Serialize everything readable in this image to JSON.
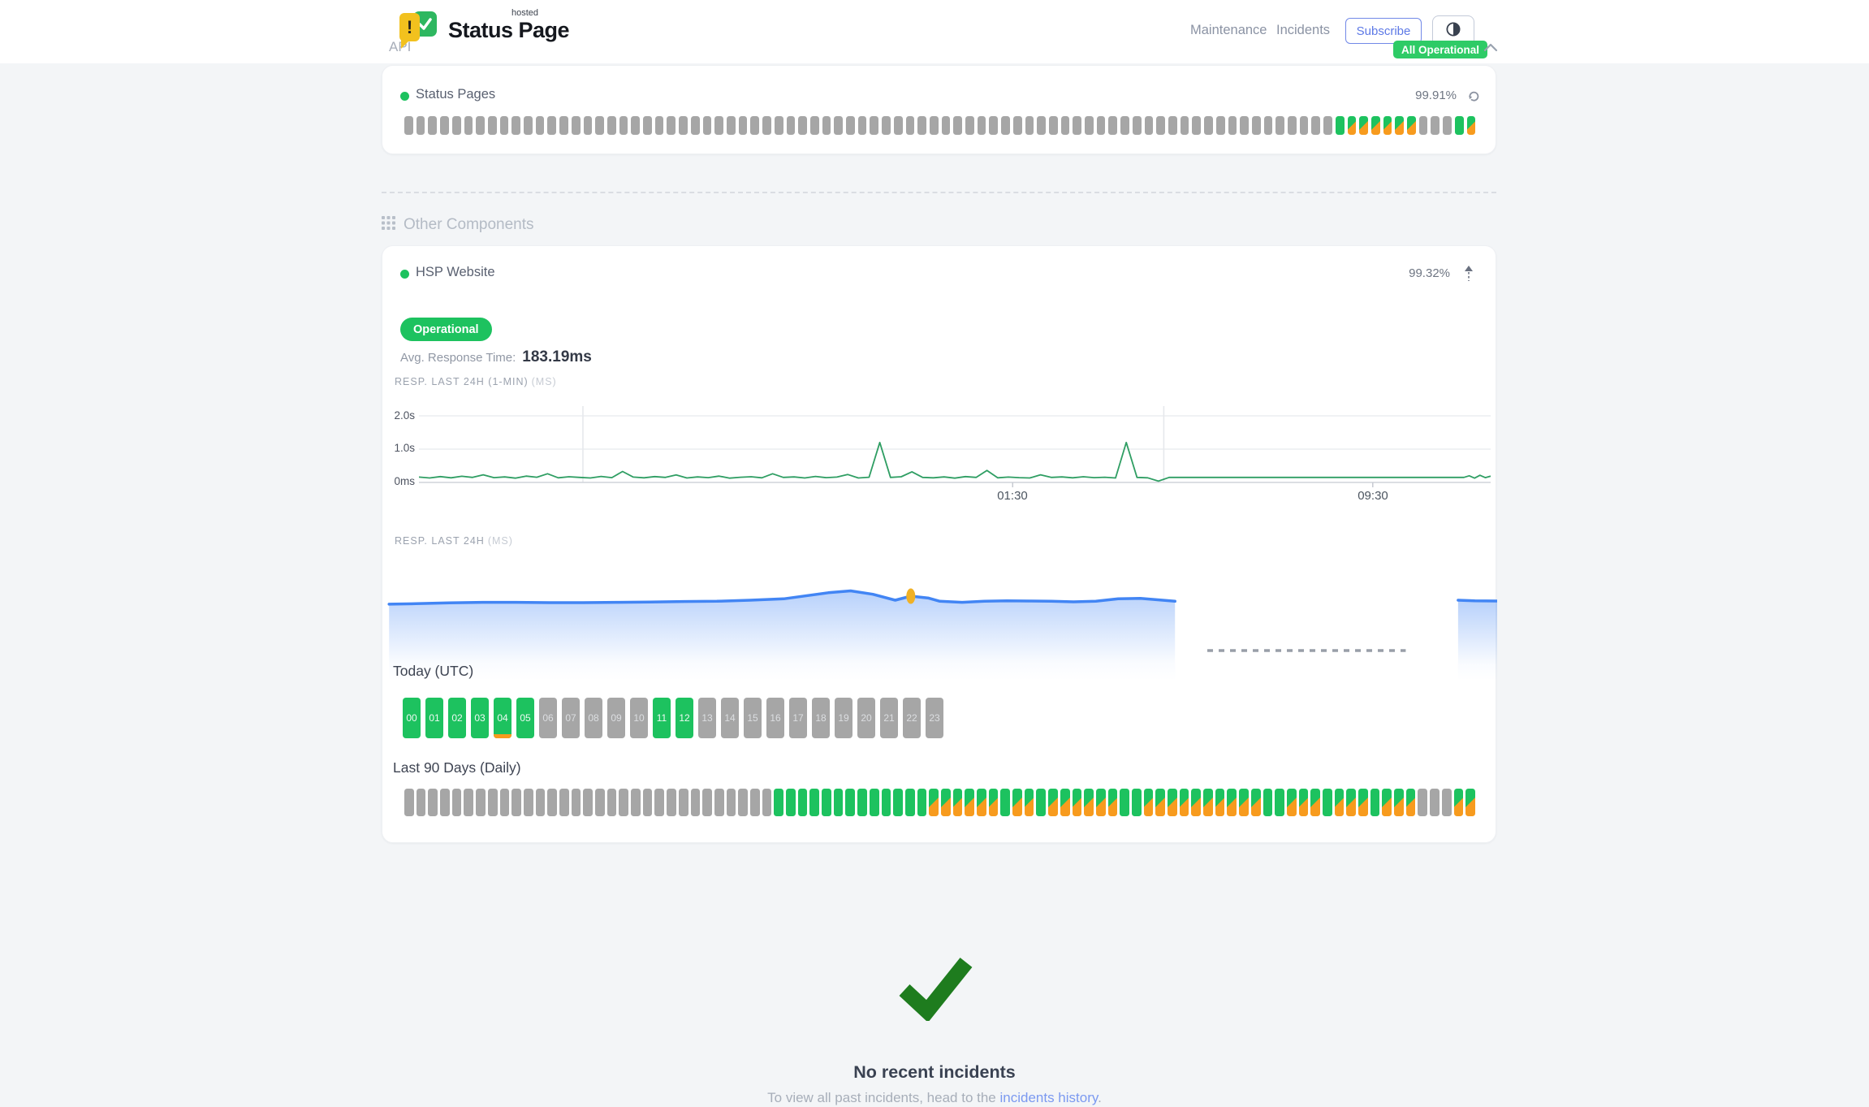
{
  "header": {
    "brand": {
      "title": "Status Page",
      "superscript": "hosted"
    },
    "nav": [
      {
        "label": "Maintenance"
      },
      {
        "label": "Incidents"
      }
    ],
    "subscribe_label": "Subscribe",
    "status_badge": "All Operational"
  },
  "sections": {
    "api": {
      "title": "API",
      "component": {
        "name": "Status Pages",
        "uptime": "99.91%"
      }
    },
    "other": {
      "title": "Other Components",
      "component": {
        "name": "HSP Website",
        "uptime": "99.32%",
        "status": "Operational",
        "avg_label": "Avg. Response Time:",
        "avg_value": "183.19ms"
      }
    }
  },
  "uptime_bars": {
    "status_pages": "ggggggggggggggggggggggggggggggggggggggggggggggggggggggggggggggggggggggggggggggGOOOOOOgggGO",
    "last_90_days": "gggggggggggggggggggggggggggggggGGGGGGGGGGGGGOOOOOOGOOGOOOOOOGGOOOOOOOOOOGGOOOGOOOGOOOgggOO"
  },
  "today": {
    "title": "Today (UTC)",
    "hours": [
      {
        "label": "00",
        "status": "up"
      },
      {
        "label": "01",
        "status": "up"
      },
      {
        "label": "02",
        "status": "up"
      },
      {
        "label": "03",
        "status": "up"
      },
      {
        "label": "04",
        "status": "up-degraded"
      },
      {
        "label": "05",
        "status": "up"
      },
      {
        "label": "06",
        "status": "none"
      },
      {
        "label": "07",
        "status": "none"
      },
      {
        "label": "08",
        "status": "none"
      },
      {
        "label": "09",
        "status": "none"
      },
      {
        "label": "10",
        "status": "none"
      },
      {
        "label": "11",
        "status": "up"
      },
      {
        "label": "12",
        "status": "up"
      },
      {
        "label": "13",
        "status": "none"
      },
      {
        "label": "14",
        "status": "none"
      },
      {
        "label": "15",
        "status": "none"
      },
      {
        "label": "16",
        "status": "none"
      },
      {
        "label": "17",
        "status": "none"
      },
      {
        "label": "18",
        "status": "none"
      },
      {
        "label": "19",
        "status": "none"
      },
      {
        "label": "20",
        "status": "none"
      },
      {
        "label": "21",
        "status": "none"
      },
      {
        "label": "22",
        "status": "none"
      },
      {
        "label": "23",
        "status": "none"
      }
    ]
  },
  "last90": {
    "title": "Last 90 Days (Daily)"
  },
  "incidents": {
    "title": "No recent incidents",
    "subtext_prefix": "To view all past incidents, head to the ",
    "link_label": "incidents history",
    "subtext_suffix": "."
  },
  "colors": {
    "green": "#1dc25f",
    "orange": "#f79b1e",
    "gray_bar": "#a6a6a6",
    "badge_green": "#2ecb66",
    "line_green": "#2f9e63",
    "line_blue": "#4285f4",
    "marker_yellow": "#f0b126",
    "link_blue": "#7b99f0",
    "check_green": "#1e7c1e"
  },
  "chart_data": [
    {
      "id": "resp_24h_1min",
      "type": "line",
      "title": "RESP. LAST 24H (1-MIN)",
      "unit_label": "(MS)",
      "y_tick_labels": [
        "0ms",
        "1.0s",
        "2.0s"
      ],
      "x_tick_labels": [
        "01:30",
        "09:30"
      ],
      "x_tick_pos": [
        0.554,
        0.89
      ],
      "v_gridlines": [
        0.153,
        0.695
      ],
      "ylim_ms": [
        0,
        2400
      ],
      "line_color": "#2f9e63",
      "points": [
        [
          0,
          160
        ],
        [
          0.01,
          135
        ],
        [
          0.02,
          175
        ],
        [
          0.03,
          140
        ],
        [
          0.04,
          185
        ],
        [
          0.05,
          150
        ],
        [
          0.06,
          230
        ],
        [
          0.07,
          145
        ],
        [
          0.08,
          165
        ],
        [
          0.09,
          130
        ],
        [
          0.1,
          190
        ],
        [
          0.11,
          155
        ],
        [
          0.12,
          260
        ],
        [
          0.13,
          140
        ],
        [
          0.14,
          170
        ],
        [
          0.15,
          150
        ],
        [
          0.16,
          135
        ],
        [
          0.17,
          180
        ],
        [
          0.18,
          145
        ],
        [
          0.19,
          330
        ],
        [
          0.2,
          160
        ],
        [
          0.21,
          140
        ],
        [
          0.22,
          175
        ],
        [
          0.23,
          150
        ],
        [
          0.24,
          225
        ],
        [
          0.25,
          135
        ],
        [
          0.26,
          165
        ],
        [
          0.27,
          145
        ],
        [
          0.28,
          190
        ],
        [
          0.29,
          130
        ],
        [
          0.3,
          155
        ],
        [
          0.31,
          170
        ],
        [
          0.32,
          140
        ],
        [
          0.33,
          260
        ],
        [
          0.34,
          150
        ],
        [
          0.35,
          165
        ],
        [
          0.36,
          135
        ],
        [
          0.37,
          180
        ],
        [
          0.38,
          145
        ],
        [
          0.39,
          160
        ],
        [
          0.4,
          240
        ],
        [
          0.41,
          135
        ],
        [
          0.42,
          155
        ],
        [
          0.43,
          1200
        ],
        [
          0.44,
          150
        ],
        [
          0.45,
          170
        ],
        [
          0.46,
          320
        ],
        [
          0.47,
          150
        ],
        [
          0.48,
          140
        ],
        [
          0.49,
          165
        ],
        [
          0.5,
          130
        ],
        [
          0.51,
          175
        ],
        [
          0.52,
          150
        ],
        [
          0.53,
          360
        ],
        [
          0.54,
          140
        ],
        [
          0.55,
          160
        ],
        [
          0.56,
          145
        ],
        [
          0.57,
          135
        ],
        [
          0.58,
          230
        ],
        [
          0.59,
          150
        ],
        [
          0.6,
          165
        ],
        [
          0.61,
          140
        ],
        [
          0.62,
          170
        ],
        [
          0.63,
          145
        ],
        [
          0.64,
          155
        ],
        [
          0.65,
          135
        ],
        [
          0.66,
          1200
        ],
        [
          0.67,
          150
        ],
        [
          0.68,
          140
        ],
        [
          0.69,
          40
        ],
        [
          0.7,
          150
        ],
        [
          0.72,
          150
        ],
        [
          0.975,
          150
        ],
        [
          0.98,
          200
        ],
        [
          0.985,
          130
        ],
        [
          0.99,
          215
        ],
        [
          0.995,
          145
        ],
        [
          1,
          190
        ]
      ]
    },
    {
      "id": "resp_24h_avg",
      "type": "area",
      "title": "RESP. LAST 24H",
      "unit_label": "(MS)",
      "avg_ms": 183.19,
      "line_color": "#4285f4",
      "marker": {
        "t": 0.474,
        "ms": 215,
        "color": "#f0b126"
      },
      "gap_dash": {
        "from": 0.74,
        "to": 0.918
      },
      "segments": [
        {
          "points": [
            [
              0.006,
              185
            ],
            [
              0.03,
              187
            ],
            [
              0.06,
              190
            ],
            [
              0.09,
              192
            ],
            [
              0.12,
              192
            ],
            [
              0.15,
              191
            ],
            [
              0.18,
              191
            ],
            [
              0.21,
              192
            ],
            [
              0.24,
              193
            ],
            [
              0.27,
              195
            ],
            [
              0.3,
              196
            ],
            [
              0.33,
              200
            ],
            [
              0.36,
              205
            ],
            [
              0.4,
              228
            ],
            [
              0.42,
              235
            ],
            [
              0.44,
              222
            ],
            [
              0.46,
              200
            ],
            [
              0.474,
              215
            ],
            [
              0.49,
              208
            ],
            [
              0.5,
              196
            ],
            [
              0.52,
              192
            ],
            [
              0.54,
              196
            ],
            [
              0.56,
              198
            ],
            [
              0.58,
              197
            ],
            [
              0.6,
              196
            ],
            [
              0.62,
              194
            ],
            [
              0.64,
              196
            ],
            [
              0.66,
              205
            ],
            [
              0.68,
              207
            ],
            [
              0.7,
              200
            ],
            [
              0.711,
              196
            ]
          ]
        },
        {
          "points": [
            [
              0.965,
              200
            ],
            [
              0.98,
              198
            ],
            [
              1,
              197
            ]
          ]
        }
      ]
    }
  ]
}
